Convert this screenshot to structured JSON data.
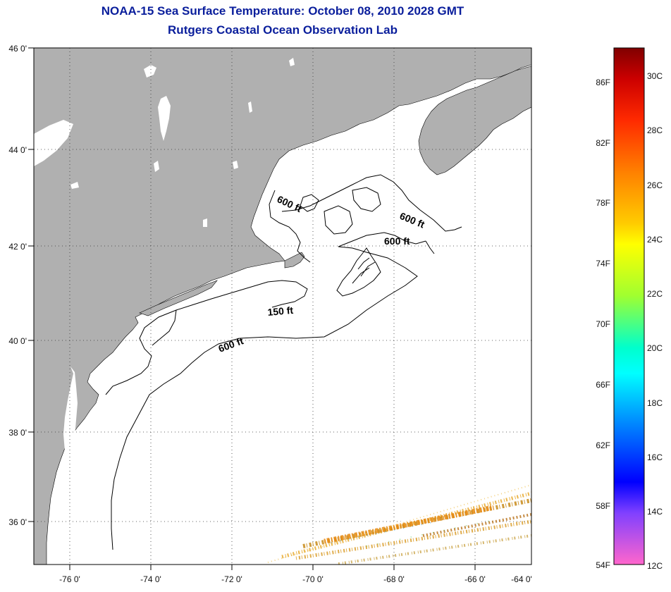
{
  "title_line1": "NOAA-15 Sea Surface Temperature:  October 08, 2010 2028 GMT",
  "title_line2": "Rutgers Coastal Ocean Observation Lab",
  "map": {
    "lat_labels": [
      "46 0'",
      "44 0'",
      "42 0'",
      "40 0'",
      "38 0'",
      "36 0'"
    ],
    "lon_labels": [
      "-76 0'",
      "-74 0'",
      "-72 0'",
      "-70 0'",
      "-68 0'",
      "-66 0'",
      "-64 0'"
    ],
    "contour_labels": [
      {
        "text": "600 ft",
        "rotate": 25
      },
      {
        "text": "600 ft",
        "rotate": 22
      },
      {
        "text": "600 ft",
        "rotate": 0
      },
      {
        "text": "150 ft",
        "rotate": -5
      },
      {
        "text": "600 ft",
        "rotate": -20
      }
    ],
    "colors": {
      "land": "#b0b0b0",
      "ocean": "#ffffff",
      "lake": "#ffffff"
    }
  },
  "colorbar": {
    "fahrenheit_labels": [
      "86F",
      "82F",
      "78F",
      "74F",
      "70F",
      "66F",
      "62F",
      "58F",
      "54F"
    ],
    "celsius_labels": [
      "30C",
      "28C",
      "26C",
      "24C",
      "22C",
      "20C",
      "18C",
      "16C",
      "14C",
      "12C"
    ],
    "color_stops": [
      "#800000",
      "#ff0000",
      "#ff8000",
      "#ffff00",
      "#80ff00",
      "#00ffff",
      "#0080ff",
      "#0000ff",
      "#8000ff",
      "#ff66cc"
    ]
  }
}
